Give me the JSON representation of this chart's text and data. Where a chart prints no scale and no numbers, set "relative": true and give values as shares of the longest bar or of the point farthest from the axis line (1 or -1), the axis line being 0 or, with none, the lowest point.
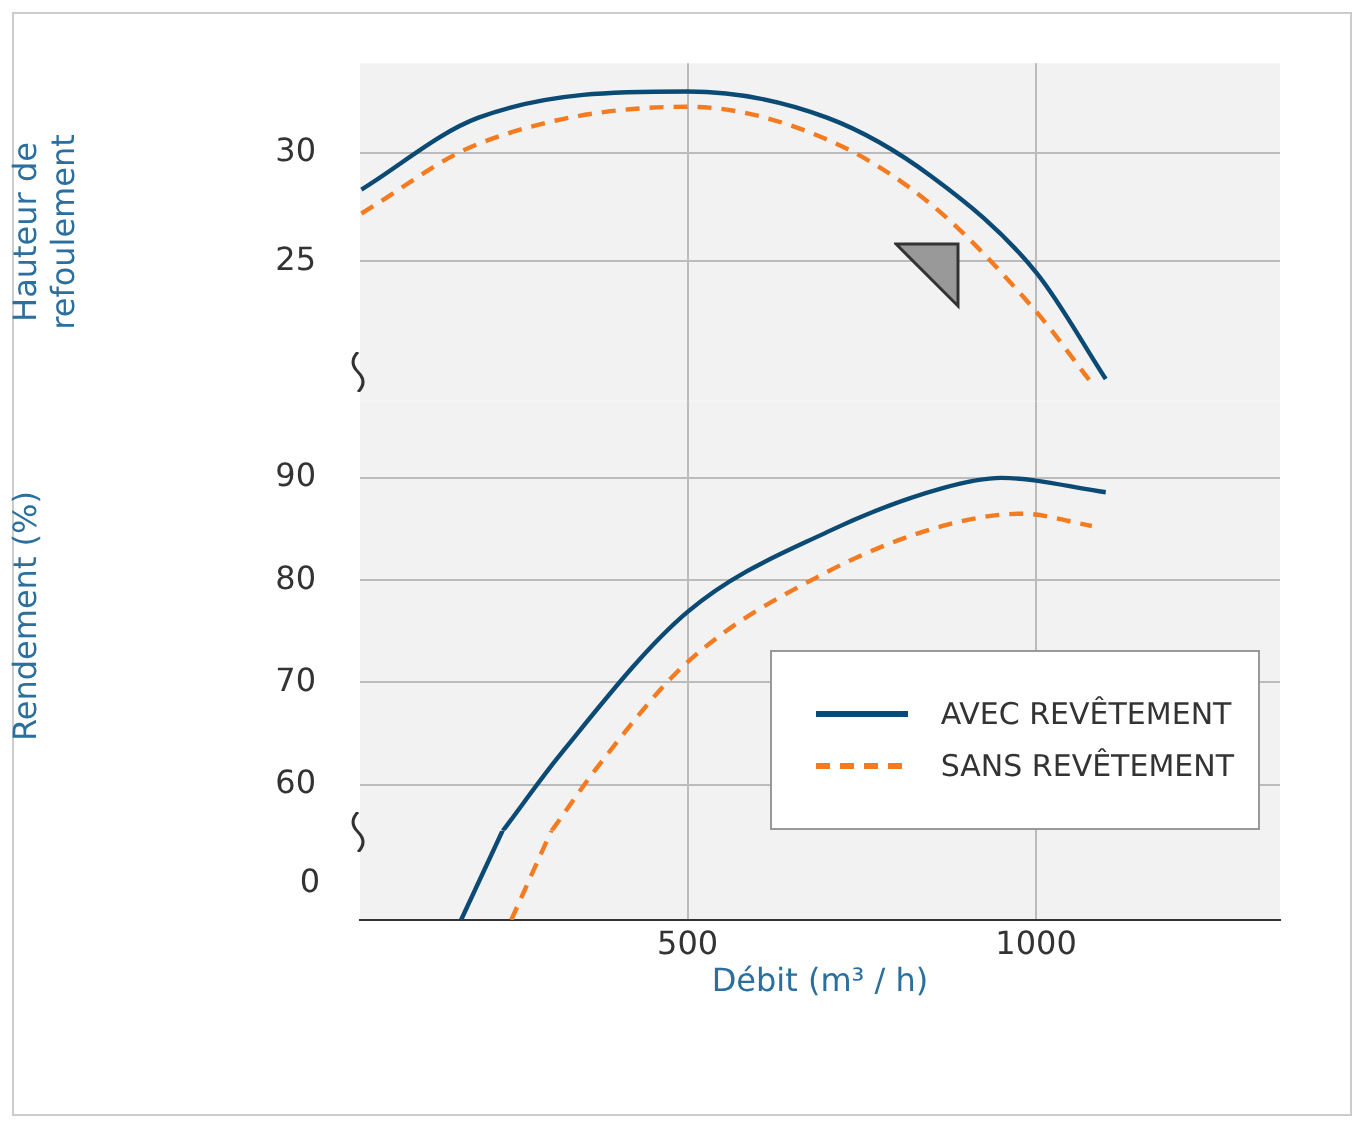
{
  "chart_data": [
    {
      "type": "line",
      "ylabel": "Hauteur de refoulement",
      "xlim": [
        30,
        1350
      ],
      "ylim": [
        18.6,
        34.1
      ],
      "yticks": [
        25,
        30
      ],
      "grid": true,
      "tick_labels": "y",
      "line_style": "solid",
      "marker": "none",
      "series": [
        {
          "color": "#0b4a74",
          "x": [
            32,
            200,
            500,
            700,
            850,
            1000,
            1100
          ],
          "values": [
            28.3,
            31.6,
            32.8,
            31.6,
            28.9,
            24.5,
            19.6
          ]
        },
        {
          "color": "#f47b20",
          "line_style": "dashed",
          "x": [
            32,
            200,
            500,
            700,
            850,
            1000,
            1080
          ],
          "values": [
            27.2,
            30.4,
            32.1,
            30.6,
            27.6,
            22.7,
            19.4
          ]
        }
      ]
    },
    {
      "type": "line",
      "ylabel": "Rendement (%)",
      "xlim": [
        30,
        1350
      ],
      "ylim": [
        55.5,
        97.5
      ],
      "yticks": [
        60,
        70,
        80,
        90
      ],
      "grid": true,
      "tick_labels": "y",
      "legend": "bottom right",
      "line_style": "solid",
      "marker": "none",
      "series": [
        {
          "name": "AVEC REVÊTEMENT",
          "color": "#0b4a74",
          "x": [
            235,
            319,
            500,
            700,
            866,
            950,
            1100
          ],
          "values": [
            55.5,
            63.1,
            76.9,
            84.7,
            89,
            90,
            88.6
          ]
        },
        {
          "name": "SANS REVÊTEMENT",
          "color": "#f47b20",
          "line_style": "dashed",
          "x": [
            305,
            376,
            500,
            700,
            866,
            980,
            1080
          ],
          "values": [
            55.5,
            62.2,
            72,
            80.8,
            85.3,
            86.5,
            85.3
          ]
        }
      ]
    },
    {
      "type": "line",
      "relative": true,
      "xlabel": "Débit (m³ / h)",
      "xlim": [
        30,
        1350
      ],
      "xticks": [
        500,
        1000
      ],
      "annotations": [
        "0"
      ],
      "grid": "x",
      "line_style": "solid",
      "marker": "none",
      "series": [
        {
          "color": "#0b4a74",
          "x": [
            175,
            235
          ],
          "values": [
            0,
            1
          ]
        },
        {
          "color": "#f47b20",
          "line_style": "dashed",
          "x": [
            247,
            305
          ],
          "values": [
            0,
            1
          ]
        }
      ]
    }
  ]
}
